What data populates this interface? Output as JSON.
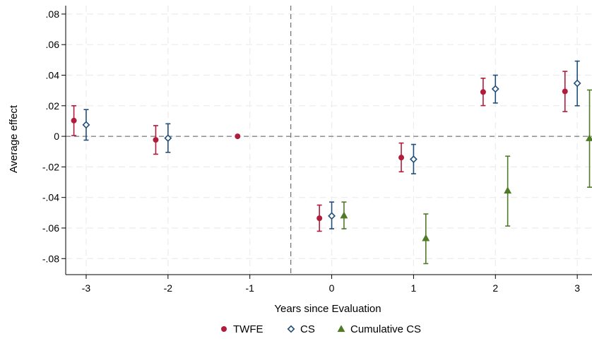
{
  "chart_data": {
    "type": "scatter",
    "xlabel": "Years since Evaluation",
    "ylabel": "Average effect",
    "x_ticks": [
      -3,
      -2,
      -1,
      0,
      1,
      2,
      3
    ],
    "x_tick_labels": [
      "-3",
      "-2",
      "-1",
      "0",
      "1",
      "2",
      "3"
    ],
    "y_ticks": [
      -0.08,
      -0.06,
      -0.04,
      -0.02,
      0,
      0.02,
      0.04,
      0.06,
      0.08
    ],
    "y_tick_labels": [
      "-.08",
      "-.06",
      "-.04",
      "-.02",
      "0",
      ".02",
      ".04",
      ".06",
      ".08"
    ],
    "xlim": [
      -3.25,
      3.18
    ],
    "ylim": [
      -0.0905,
      0.0855
    ],
    "grid": true,
    "reference_lines": {
      "vertical_x": -0.5,
      "horizontal_y": 0
    },
    "legend_position": "bottom",
    "series": [
      {
        "name": "TWFE",
        "marker": "circle",
        "color": "#b01c3c",
        "offset": -0.15,
        "x": [
          -3,
          -2,
          -1,
          0,
          1,
          2,
          3
        ],
        "y": [
          0.0103,
          -0.0023,
          0.0,
          -0.0536,
          -0.0139,
          0.029,
          0.0294
        ],
        "ci_low": [
          0.0005,
          -0.0117,
          null,
          -0.0621,
          -0.0232,
          0.0201,
          0.0162
        ],
        "ci_high": [
          0.02,
          0.007,
          null,
          -0.045,
          -0.0044,
          0.038,
          0.0425
        ]
      },
      {
        "name": "CS",
        "marker": "diamond",
        "color": "#1f4e79",
        "offset": 0.0,
        "x": [
          -3,
          -2,
          -1,
          0,
          1,
          2,
          3
        ],
        "y": [
          0.0075,
          -0.0012,
          null,
          -0.0521,
          -0.015,
          0.031,
          0.0347
        ],
        "ci_low": [
          -0.0025,
          -0.0105,
          null,
          -0.0605,
          -0.0245,
          0.0218,
          0.02
        ],
        "ci_high": [
          0.0175,
          0.0082,
          null,
          -0.043,
          -0.0053,
          0.04,
          0.0492
        ]
      },
      {
        "name": "Cumulative CS",
        "marker": "triangle",
        "color": "#4f7a28",
        "offset": 0.15,
        "x": [
          0,
          1,
          2,
          3
        ],
        "y": [
          -0.0518,
          -0.0666,
          -0.0355,
          -0.0012
        ],
        "ci_low": [
          -0.0605,
          -0.0833,
          -0.0587,
          -0.0333
        ],
        "ci_high": [
          -0.043,
          -0.0508,
          -0.013,
          0.0303
        ]
      }
    ]
  }
}
